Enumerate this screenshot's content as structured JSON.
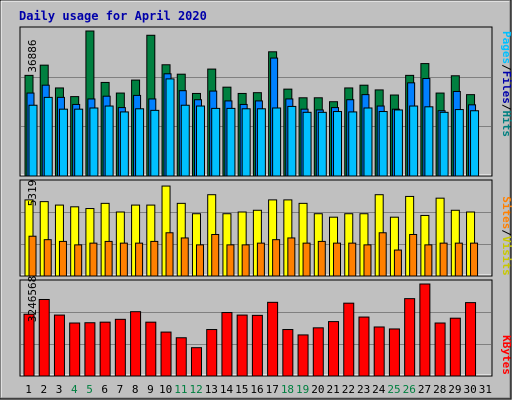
{
  "title": "Daily usage for April 2020",
  "colors": {
    "background": "#c0c0c0",
    "title": "#0000aa",
    "hits": "#008040",
    "files": "#00c0ff",
    "pages": "#00c0ff",
    "visits": "#ffff00",
    "sites": "#ff8000",
    "kbytes": "#ff0000",
    "weekend_day": "#008040",
    "weekday": "#000000"
  },
  "chart_data": [
    {
      "type": "bar",
      "name": "hits-files-pages",
      "ymax_label": "36886",
      "ymax": 36886,
      "legend": [
        "Pages",
        "/",
        "Files",
        "/",
        "Hits"
      ],
      "categories": [
        "1",
        "2",
        "3",
        "4",
        "5",
        "6",
        "7",
        "8",
        "9",
        "10",
        "11",
        "12",
        "13",
        "14",
        "15",
        "16",
        "17",
        "18",
        "19",
        "20",
        "21",
        "22",
        "23",
        "24",
        "25",
        "26",
        "27",
        "28",
        "29",
        "30",
        "31"
      ],
      "series": [
        {
          "name": "Hits",
          "values": [
            25600,
            28200,
            22400,
            20200,
            36886,
            23800,
            21100,
            24400,
            35800,
            28300,
            25900,
            21000,
            27200,
            22600,
            21000,
            21200,
            31600,
            22100,
            19900,
            19900,
            18900,
            22400,
            23100,
            21900,
            20600,
            25600,
            28600,
            21100,
            25500,
            20700,
            0
          ]
        },
        {
          "name": "Files",
          "values": [
            21100,
            23100,
            20000,
            18200,
            19600,
            20300,
            17400,
            20500,
            19600,
            26000,
            21700,
            19400,
            21600,
            19100,
            18200,
            19100,
            30000,
            19600,
            17000,
            16800,
            17400,
            19400,
            20700,
            17800,
            17000,
            23700,
            24800,
            16600,
            21500,
            18100,
            0
          ]
        },
        {
          "name": "Pages",
          "values": [
            18000,
            20000,
            17000,
            17000,
            17300,
            17800,
            16300,
            17100,
            16700,
            24700,
            18000,
            17800,
            17200,
            17200,
            17100,
            17100,
            17300,
            17700,
            16200,
            16200,
            16400,
            16300,
            17300,
            16400,
            16800,
            17800,
            17600,
            16200,
            16900,
            16600,
            0
          ]
        }
      ]
    },
    {
      "type": "bar",
      "name": "visits-sites",
      "ymax_label": "5319",
      "ymax": 5319,
      "legend": [
        "Sites",
        "/",
        "Visits"
      ],
      "categories": [
        "1",
        "2",
        "3",
        "4",
        "5",
        "6",
        "7",
        "8",
        "9",
        "10",
        "11",
        "12",
        "13",
        "14",
        "15",
        "16",
        "17",
        "18",
        "19",
        "20",
        "21",
        "22",
        "23",
        "24",
        "25",
        "26",
        "27",
        "28",
        "29",
        "30",
        "31"
      ],
      "series": [
        {
          "name": "Visits",
          "values": [
            4400,
            4300,
            4100,
            4000,
            3900,
            4200,
            3700,
            4100,
            4100,
            5200,
            4200,
            3600,
            4700,
            3600,
            3700,
            3800,
            4400,
            4400,
            4200,
            3600,
            3400,
            3600,
            3600,
            4700,
            3400,
            4600,
            3500,
            4500,
            3800,
            3700,
            0
          ]
        },
        {
          "name": "Sites",
          "values": [
            2300,
            2100,
            2000,
            1800,
            1900,
            2000,
            1900,
            1900,
            2000,
            2500,
            2200,
            1800,
            2400,
            1800,
            1800,
            1900,
            2100,
            2200,
            1900,
            2000,
            1900,
            1900,
            1800,
            2500,
            1500,
            2400,
            1800,
            1900,
            1900,
            1900,
            0
          ]
        }
      ]
    },
    {
      "type": "bar",
      "name": "kbytes",
      "ymax_label": "3246568",
      "ymax": 3246568,
      "legend": [
        "KBytes"
      ],
      "categories": [
        "1",
        "2",
        "3",
        "4",
        "5",
        "6",
        "7",
        "8",
        "9",
        "10",
        "11",
        "12",
        "13",
        "14",
        "15",
        "16",
        "17",
        "18",
        "19",
        "20",
        "21",
        "22",
        "23",
        "24",
        "25",
        "26",
        "27",
        "28",
        "29",
        "30",
        "31"
      ],
      "series": [
        {
          "name": "KBytes",
          "values": [
            2180000,
            2700000,
            2150000,
            1870000,
            1880000,
            1900000,
            2000000,
            2270000,
            1900000,
            1550000,
            1350000,
            1000000,
            1640000,
            2240000,
            2150000,
            2140000,
            2600000,
            1640000,
            1450000,
            1700000,
            1920000,
            2570000,
            2080000,
            1730000,
            1660000,
            2730000,
            3246568,
            1870000,
            2040000,
            2590000,
            0
          ]
        }
      ]
    }
  ],
  "x_labels": [
    "1",
    "2",
    "3",
    "4",
    "5",
    "6",
    "7",
    "8",
    "9",
    "10",
    "11",
    "12",
    "13",
    "14",
    "15",
    "16",
    "17",
    "18",
    "19",
    "20",
    "21",
    "22",
    "23",
    "24",
    "25",
    "26",
    "27",
    "28",
    "29",
    "30",
    "31"
  ],
  "weekend_days": [
    4,
    5,
    11,
    12,
    18,
    19,
    25,
    26
  ]
}
